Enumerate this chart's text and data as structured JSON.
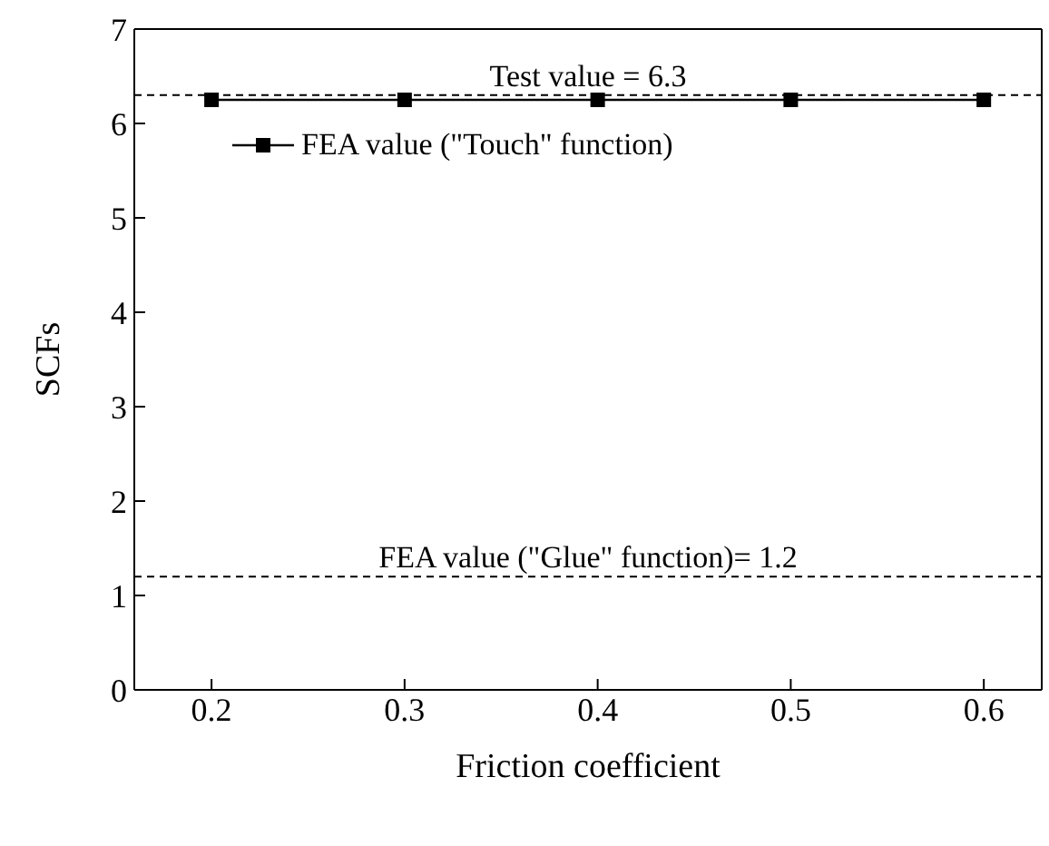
{
  "chart_data": {
    "type": "line",
    "xlabel": "Friction coefficient",
    "ylabel": "SCFs",
    "x": [
      0.2,
      0.3,
      0.4,
      0.5,
      0.6
    ],
    "series": [
      {
        "name": "FEA value (\"Touch\" function)",
        "color": "#000000",
        "values": [
          6.25,
          6.25,
          6.25,
          6.25,
          6.25
        ]
      }
    ],
    "xlim": [
      0.16,
      0.63
    ],
    "xticks": [
      0.2,
      0.3,
      0.4,
      0.5,
      0.6
    ],
    "ylim": [
      0,
      7
    ],
    "yticks": [
      0,
      1,
      2,
      3,
      4,
      5,
      6,
      7
    ],
    "ref_lines": [
      {
        "axis": "y",
        "value": 6.3,
        "label": "Test value = 6.3",
        "color": "#000000",
        "line_style": "dashed"
      },
      {
        "axis": "y",
        "value": 1.2,
        "label": "FEA value (\"Glue\" function)= 1.2",
        "color": "#000000",
        "line_style": "dashed"
      }
    ],
    "marker": "square",
    "line_style": "solid",
    "grid": false,
    "legend": "top"
  }
}
